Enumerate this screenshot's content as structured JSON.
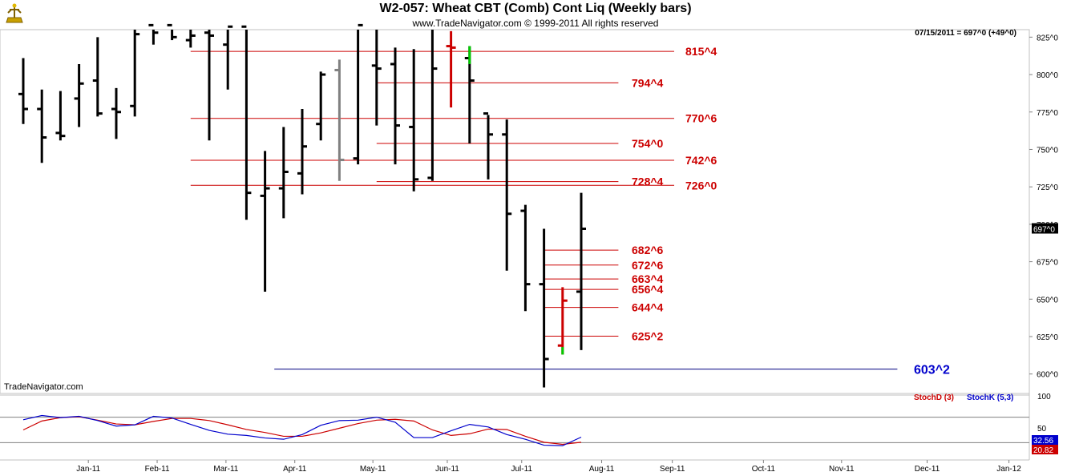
{
  "title": "W2-057:  Wheat CBT (Comb) Cont Liq  (Weekly bars)",
  "subtitle": "www.TradeNavigator.com © 1999-2011 All rights reserved",
  "info": "07/15/2011 = 697^0 (+49^0)",
  "brand": "TradeNavigator.com",
  "colors": {
    "bar": "#000000",
    "level": "#cc0000",
    "support": "#000080",
    "stochD": "#cc0000",
    "stochK": "#0000cc",
    "up_tick": "#00cc00",
    "gray_bar": "#808080"
  },
  "chart_data": {
    "type": "bar",
    "price_axis": {
      "ylim": [
        587,
        830
      ],
      "ticks": [
        "825^0",
        "800^0",
        "775^0",
        "750^0",
        "725^0",
        "700^0",
        "675^0",
        "650^0",
        "625^0",
        "600^0"
      ],
      "tick_values": [
        825,
        800,
        775,
        750,
        725,
        700,
        675,
        650,
        625,
        600
      ],
      "last_price_label": "697^0",
      "last_price": 697
    },
    "x_axis": {
      "labels": [
        "Jan-11",
        "Feb-11",
        "Mar-11",
        "Apr-11",
        "May-11",
        "Jun-11",
        "Jul-11",
        "Aug-11",
        "Sep-11",
        "Oct-11",
        "Nov-11",
        "Dec-11",
        "Jan-12"
      ],
      "label_week": [
        3.5,
        7.2,
        10.9,
        14.6,
        18.8,
        22.8,
        26.8,
        31.1,
        34.9,
        39.8,
        44.0,
        48.6,
        53.0
      ]
    },
    "bars": [
      {
        "w": 0,
        "h": 811,
        "l": 767,
        "o": 787,
        "c": 777
      },
      {
        "w": 1,
        "h": 790,
        "l": 741,
        "o": 777,
        "c": 758
      },
      {
        "w": 2,
        "h": 789,
        "l": 756,
        "o": 761,
        "c": 759
      },
      {
        "w": 3,
        "h": 807,
        "l": 765,
        "o": 784,
        "c": 794
      },
      {
        "w": 4,
        "h": 825,
        "l": 772,
        "o": 796,
        "c": 774
      },
      {
        "w": 5,
        "h": 791,
        "l": 757,
        "o": 777,
        "c": 775
      },
      {
        "w": 6,
        "h": 833,
        "l": 772,
        "o": 779,
        "c": 827
      },
      {
        "w": 7,
        "h": 833,
        "l": 820,
        "o": 833,
        "c": 828
      },
      {
        "w": 8,
        "h": 833,
        "l": 823,
        "o": 833,
        "c": 825
      },
      {
        "w": 9,
        "h": 833,
        "l": 818,
        "o": 823,
        "c": 826
      },
      {
        "w": 10,
        "h": 833,
        "l": 756,
        "o": 828,
        "c": 826
      },
      {
        "w": 11,
        "h": 833,
        "l": 790,
        "o": 820,
        "c": 832
      },
      {
        "w": 12,
        "h": 833,
        "l": 703,
        "o": 832,
        "c": 721
      },
      {
        "w": 13,
        "h": 749,
        "l": 655,
        "o": 719,
        "c": 724
      },
      {
        "w": 14,
        "h": 765,
        "l": 704,
        "o": 724,
        "c": 735
      },
      {
        "w": 15,
        "h": 777,
        "l": 720,
        "o": 734,
        "c": 752
      },
      {
        "w": 16,
        "h": 802,
        "l": 756,
        "o": 767,
        "c": 800
      },
      {
        "w": 17,
        "h": 810,
        "l": 729,
        "o": 803,
        "c": 743,
        "gray": true
      },
      {
        "w": 18,
        "h": 833,
        "l": 740,
        "o": 744,
        "c": 833
      },
      {
        "w": 19,
        "h": 833,
        "l": 766,
        "o": 806,
        "c": 804
      },
      {
        "w": 20,
        "h": 818,
        "l": 740,
        "o": 807,
        "c": 766
      },
      {
        "w": 21,
        "h": 817,
        "l": 722,
        "o": 765,
        "c": 730
      },
      {
        "w": 22,
        "h": 833,
        "l": 729,
        "o": 731,
        "c": 804
      },
      {
        "w": 23,
        "h": 829,
        "l": 778,
        "o": 819,
        "c": 818,
        "red": true
      },
      {
        "w": 24,
        "h": 819,
        "l": 754,
        "o": 811,
        "c": 796,
        "green_top": true
      },
      {
        "w": 25,
        "h": 773,
        "l": 730,
        "o": 774,
        "c": 760
      },
      {
        "w": 26,
        "h": 770,
        "l": 669,
        "o": 760,
        "c": 707
      },
      {
        "w": 27,
        "h": 713,
        "l": 642,
        "o": 709,
        "c": 660
      },
      {
        "w": 28,
        "h": 697,
        "l": 591,
        "o": 660,
        "c": 610
      },
      {
        "w": 29,
        "h": 658,
        "l": 613,
        "o": 619,
        "c": 649,
        "red": true,
        "green_bottom": true
      },
      {
        "w": 30,
        "h": 721,
        "l": 616,
        "o": 655,
        "c": 697
      }
    ],
    "levels": [
      {
        "label": "815^4",
        "value": 815.5,
        "w_from": 9,
        "w_to": 35,
        "label_pos": "far"
      },
      {
        "label": "794^4",
        "value": 794.5,
        "w_from": 19,
        "w_to": 32,
        "label_pos": "near"
      },
      {
        "label": "770^6",
        "value": 770.75,
        "w_from": 9,
        "w_to": 35,
        "label_pos": "far"
      },
      {
        "label": "754^0",
        "value": 754,
        "w_from": 19,
        "w_to": 32,
        "label_pos": "near"
      },
      {
        "label": "742^6",
        "value": 742.75,
        "w_from": 9,
        "w_to": 35,
        "label_pos": "far"
      },
      {
        "label": "728^4",
        "value": 728.5,
        "w_from": 19,
        "w_to": 32,
        "label_pos": "near"
      },
      {
        "label": "726^0",
        "value": 726,
        "w_from": 9,
        "w_to": 35,
        "label_pos": "far"
      },
      {
        "label": "682^6",
        "value": 682.75,
        "w_from": 28,
        "w_to": 32,
        "label_pos": "near"
      },
      {
        "label": "672^6",
        "value": 672.75,
        "w_from": 28,
        "w_to": 32,
        "label_pos": "near"
      },
      {
        "label": "663^4",
        "value": 663.5,
        "w_from": 28,
        "w_to": 32,
        "label_pos": "near"
      },
      {
        "label": "656^4",
        "value": 656.5,
        "w_from": 28,
        "w_to": 32,
        "label_pos": "near"
      },
      {
        "label": "644^4",
        "value": 644.5,
        "w_from": 28,
        "w_to": 32,
        "label_pos": "near"
      },
      {
        "label": "625^2",
        "value": 625.25,
        "w_from": 28,
        "w_to": 32,
        "label_pos": "near"
      }
    ],
    "support": {
      "label": "603^2",
      "value": 603.25,
      "w_from": 13.5,
      "w_to": 47
    },
    "stochastic": {
      "ylim": [
        0,
        100
      ],
      "ticks": [
        "100",
        "50"
      ],
      "tick_values": [
        100,
        50
      ],
      "ref_lines": [
        80,
        20
      ],
      "stochD_label": "StochD (3)",
      "stochK_label": "StochK (5,3)",
      "stochD_value": "20.82",
      "stochK_value": "32.56",
      "stochD": [
        [
          0,
          50
        ],
        [
          1,
          71
        ],
        [
          2,
          79
        ],
        [
          3,
          81
        ],
        [
          4,
          73
        ],
        [
          5,
          64
        ],
        [
          6,
          62
        ],
        [
          7,
          70
        ],
        [
          8,
          77
        ],
        [
          9,
          77
        ],
        [
          10,
          72
        ],
        [
          11,
          62
        ],
        [
          12,
          51
        ],
        [
          13,
          44
        ],
        [
          14,
          35
        ],
        [
          15,
          35
        ],
        [
          16,
          43
        ],
        [
          17,
          54
        ],
        [
          18,
          65
        ],
        [
          19,
          73
        ],
        [
          20,
          75
        ],
        [
          21,
          71
        ],
        [
          22,
          50
        ],
        [
          23,
          37
        ],
        [
          24,
          41
        ],
        [
          25,
          52
        ],
        [
          26,
          51
        ],
        [
          27,
          35
        ],
        [
          28,
          21
        ],
        [
          29,
          16
        ],
        [
          30,
          21
        ]
      ],
      "stochK": [
        [
          0,
          74
        ],
        [
          1,
          84
        ],
        [
          2,
          79
        ],
        [
          3,
          82
        ],
        [
          4,
          72
        ],
        [
          5,
          59
        ],
        [
          6,
          62
        ],
        [
          7,
          82
        ],
        [
          8,
          78
        ],
        [
          9,
          63
        ],
        [
          10,
          49
        ],
        [
          11,
          40
        ],
        [
          12,
          37
        ],
        [
          13,
          31
        ],
        [
          14,
          28
        ],
        [
          15,
          39
        ],
        [
          16,
          61
        ],
        [
          17,
          72
        ],
        [
          18,
          73
        ],
        [
          19,
          80
        ],
        [
          20,
          68
        ],
        [
          21,
          32
        ],
        [
          22,
          32
        ],
        [
          23,
          48
        ],
        [
          24,
          63
        ],
        [
          25,
          57
        ],
        [
          26,
          39
        ],
        [
          27,
          28
        ],
        [
          28,
          14
        ],
        [
          29,
          13
        ],
        [
          30,
          33
        ]
      ]
    }
  }
}
